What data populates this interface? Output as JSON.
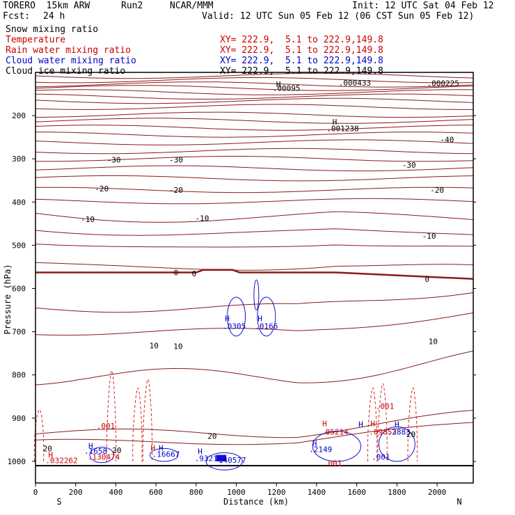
{
  "header": {
    "model": "TORERO  15km ARW",
    "run": "Run2",
    "org": "NCAR/MMM",
    "init": "Init: 12 UTC Sat 04 Feb 12",
    "fcst_label": "Fcst:",
    "fcst_value": "24 h",
    "valid": "Valid: 12 UTC Sun 05 Feb 12 (06 CST Sun 05 Feb 12)"
  },
  "fields": [
    {
      "name": "Snow mixing ratio",
      "xy": "",
      "color": "#000000"
    },
    {
      "name": "Temperature",
      "xy": "XY= 222.9,  5.1 to 222.9,149.8",
      "color": "#cc0000"
    },
    {
      "name": "Rain water mixing ratio",
      "xy": "XY= 222.9,  5.1 to 222.9,149.8",
      "color": "#cc0000"
    },
    {
      "name": "Cloud water mixing ratio",
      "xy": "XY= 222.9,  5.1 to 222.9,149.8",
      "color": "#0000cc"
    },
    {
      "name": "Cloud ice mixing ratio",
      "xy": "XY= 222.9,  5.1 to 222.9,149.8",
      "color": "#000000"
    }
  ],
  "chart_data": {
    "type": "cross-section contour",
    "xlabel": "Distance (km)",
    "ylabel": "Pressure (hPa)",
    "xlim": [
      0,
      2180
    ],
    "ylim": [
      1050,
      100
    ],
    "x_ticks": [
      "0",
      "200",
      "400",
      "600",
      "800",
      "1000",
      "1200",
      "1400",
      "1600",
      "1800",
      "2000"
    ],
    "y_ticks": [
      "200",
      "300",
      "400",
      "500",
      "600",
      "700",
      "800",
      "900",
      "1000"
    ],
    "left_end": "S",
    "right_end": "N",
    "colors": {
      "temperature": "#8b1a1a",
      "rain": "#dd2222",
      "cloud_water": "#1010cc",
      "frame": "#000000"
    },
    "temperature_labels": [
      {
        "text": "-40",
        "x": 2050,
        "p": 255
      },
      {
        "text": "-30",
        "x": 390,
        "p": 302
      },
      {
        "text": "-30",
        "x": 700,
        "p": 302
      },
      {
        "text": "-30",
        "x": 1860,
        "p": 314
      },
      {
        "text": "-20",
        "x": 330,
        "p": 369
      },
      {
        "text": "-20",
        "x": 700,
        "p": 372
      },
      {
        "text": "-20",
        "x": 2000,
        "p": 372
      },
      {
        "text": "-10",
        "x": 260,
        "p": 440
      },
      {
        "text": "-10",
        "x": 830,
        "p": 437
      },
      {
        "text": "-10",
        "x": 1960,
        "p": 478
      },
      {
        "text": "0",
        "x": 700,
        "p": 563
      },
      {
        "text": "0",
        "x": 790,
        "p": 565
      },
      {
        "text": "0",
        "x": 1950,
        "p": 578
      },
      {
        "text": "10",
        "x": 590,
        "p": 732
      },
      {
        "text": "10",
        "x": 710,
        "p": 734
      },
      {
        "text": "10",
        "x": 1980,
        "p": 722
      },
      {
        "text": "20",
        "x": 880,
        "p": 941
      },
      {
        "text": "20",
        "x": 1870,
        "p": 937
      },
      {
        "text": "20",
        "x": 60,
        "p": 970
      },
      {
        "text": "20",
        "x": 405,
        "p": 974
      }
    ],
    "extrema_labels": [
      {
        "text": "H",
        "x": 1490,
        "p": 214,
        "color": "#000000"
      },
      {
        "text": ".001238",
        "x": 1530,
        "p": 230,
        "color": "#000000"
      },
      {
        "text": ".000225",
        "x": 2030,
        "p": 125,
        "color": "#000000"
      },
      {
        "text": ".000433",
        "x": 1590,
        "p": 124,
        "color": "#000000"
      },
      {
        "text": ".00095",
        "x": 1250,
        "p": 136,
        "color": "#000000"
      },
      {
        "text": "H",
        "x": 1210,
        "p": 127,
        "color": "#000000"
      },
      {
        "text": "H",
        "x": 955,
        "p": 669,
        "color": "#0000cc"
      },
      {
        "text": ".0305",
        "x": 990,
        "p": 687,
        "color": "#0000cc"
      },
      {
        "text": "H",
        "x": 1118,
        "p": 669,
        "color": "#0000cc"
      },
      {
        "text": ".0166",
        "x": 1150,
        "p": 687,
        "color": "#0000cc"
      },
      {
        "text": ".001",
        "x": 350,
        "p": 918,
        "color": "#cc0000"
      },
      {
        "text": ".001",
        "x": 1740,
        "p": 872,
        "color": "#cc0000"
      },
      {
        "text": "H",
        "x": 1440,
        "p": 912,
        "color": "#cc0000"
      },
      {
        "text": ".05214",
        "x": 1490,
        "p": 932,
        "color": "#cc0000"
      },
      {
        "text": "H",
        "x": 1680,
        "p": 912,
        "color": "#cc0000"
      },
      {
        "text": ".09853",
        "x": 1730,
        "p": 932,
        "color": "#cc0000"
      },
      {
        "text": ".2883",
        "x": 1810,
        "p": 932,
        "color": "#0000cc"
      },
      {
        "text": "H",
        "x": 1620,
        "p": 914,
        "color": "#0000cc"
      },
      {
        "text": "H",
        "x": 1800,
        "p": 914,
        "color": "#0000cc"
      },
      {
        "text": ".2149",
        "x": 1420,
        "p": 972,
        "color": "#0000cc"
      },
      {
        "text": "H",
        "x": 1390,
        "p": 958,
        "color": "#0000cc"
      },
      {
        "text": ".001",
        "x": 1720,
        "p": 990,
        "color": "#0000cc"
      },
      {
        "text": ".001",
        "x": 1480,
        "p": 1004,
        "color": "#cc0000"
      },
      {
        "text": "H",
        "x": 75,
        "p": 985,
        "color": "#cc0000"
      },
      {
        "text": ".032262",
        "x": 130,
        "p": 998,
        "color": "#cc0000"
      },
      {
        "text": "H",
        "x": 275,
        "p": 964,
        "color": "#0000cc"
      },
      {
        "text": ".1658",
        "x": 300,
        "p": 976,
        "color": "#0000cc"
      },
      {
        "text": ".130474",
        "x": 340,
        "p": 990,
        "color": "#cc0000"
      },
      {
        "text": "H",
        "x": 585,
        "p": 969,
        "color": "#cc0000"
      },
      {
        "text": "H",
        "x": 625,
        "p": 969,
        "color": "#0000cc"
      },
      {
        "text": ".16667",
        "x": 650,
        "p": 983,
        "color": "#0000cc"
      },
      {
        "text": "H",
        "x": 820,
        "p": 977,
        "color": "#0000cc"
      },
      {
        "text": ".9321",
        "x": 850,
        "p": 993,
        "color": "#0000cc"
      },
      {
        "text": "140577",
        "x": 980,
        "p": 997,
        "color": "#0000cc"
      }
    ]
  }
}
